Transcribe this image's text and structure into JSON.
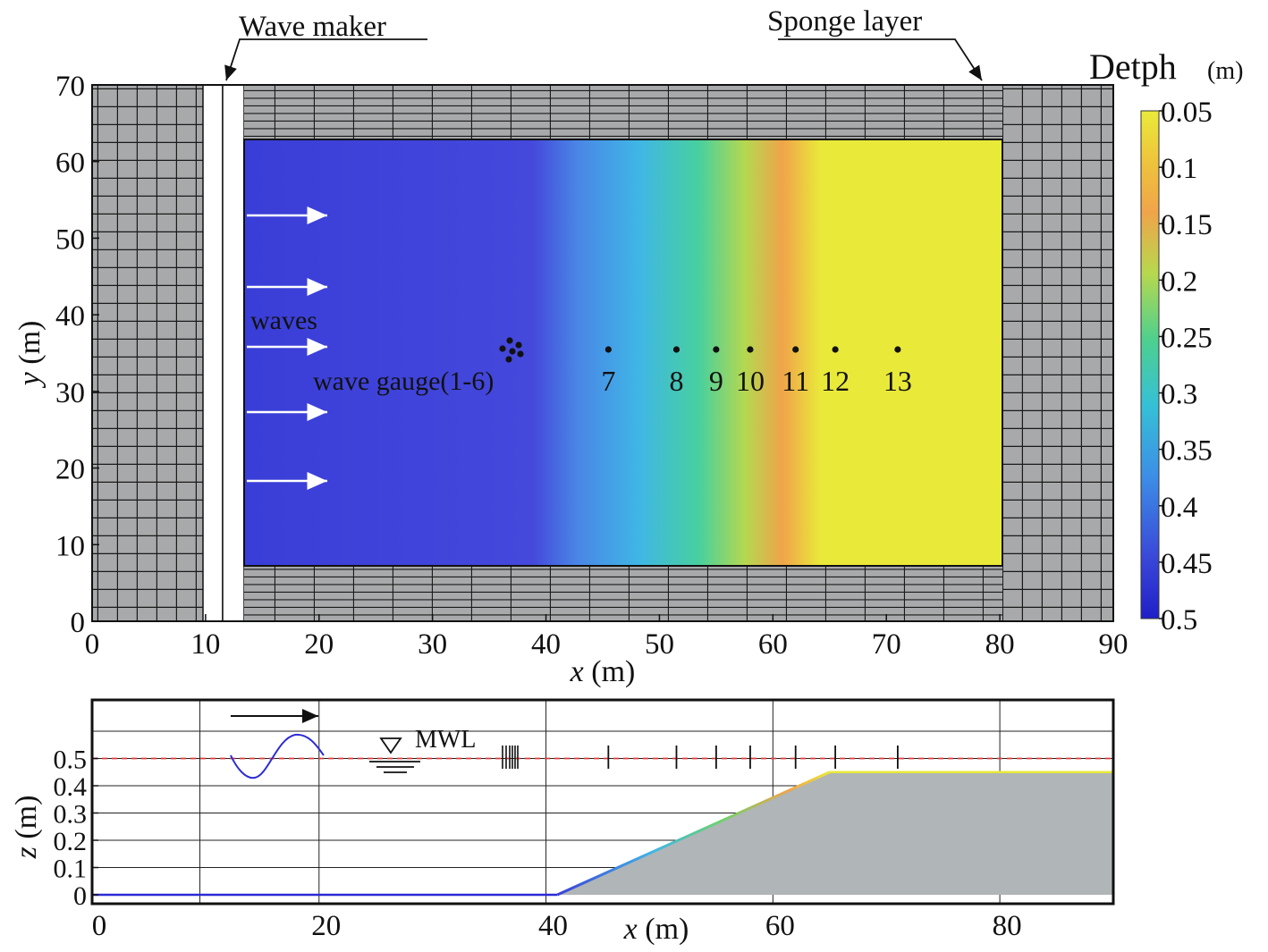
{
  "labels": {
    "wave_maker": "Wave maker",
    "sponge_layer": "Sponge layer",
    "waves": "waves",
    "wave_gauge": "wave gauge(1-6)",
    "mwl": "MWL"
  },
  "top_plot": {
    "y_axis_label_var": "y",
    "y_axis_label_unit": " (m)",
    "x_axis_label_var": "x",
    "x_axis_label_unit": " (m)",
    "x_ticks": [
      "0",
      "10",
      "20",
      "30",
      "40",
      "50",
      "60",
      "70",
      "80",
      "90"
    ],
    "y_ticks": [
      "0",
      "10",
      "20",
      "30",
      "40",
      "50",
      "60",
      "70"
    ],
    "gauge_numbers": [
      "7",
      "8",
      "9",
      "10",
      "11",
      "12",
      "13"
    ]
  },
  "colorbar": {
    "title": "Detph",
    "unit": "(m)",
    "ticks": [
      "0.05",
      "0.1",
      "0.15",
      "0.2",
      "0.25",
      "0.3",
      "0.35",
      "0.4",
      "0.45",
      "0.5"
    ],
    "colors": {
      "deep": "#2b2bd6",
      "mid_deep": "#4a72dd",
      "mid": "#3aa7e8",
      "cyan_green": "#3fcfa8",
      "green": "#8fd866",
      "orange": "#f0a44a",
      "yellow": "#e9e93a",
      "grid_gray": "#a7a9ab"
    }
  },
  "bottom_plot": {
    "y_axis_label_var": "z",
    "y_axis_label_unit": " (m)",
    "x_axis_label_var": "x",
    "x_axis_label_unit": " (m)",
    "x_ticks": [
      "0",
      "20",
      "40",
      "60",
      "80"
    ],
    "y_ticks": [
      "0",
      "0.1",
      "0.2",
      "0.3",
      "0.4",
      "0.5"
    ]
  },
  "chart_data": {
    "type": "area",
    "xlabel": "x (m)",
    "ylabel": "z (m)",
    "xlim": [
      0,
      90
    ],
    "ylim": [
      0,
      0.6
    ],
    "mean_water_level": 0.5,
    "bathymetry": {
      "x": [
        0,
        41,
        65,
        90
      ],
      "z": [
        0.0,
        0.0,
        0.45,
        0.45
      ]
    },
    "depth_colorbar": {
      "min": 0.05,
      "max": 0.5
    },
    "wave_gauge_x": [
      45.5,
      51.5,
      55,
      58,
      62,
      65.5,
      71
    ]
  }
}
